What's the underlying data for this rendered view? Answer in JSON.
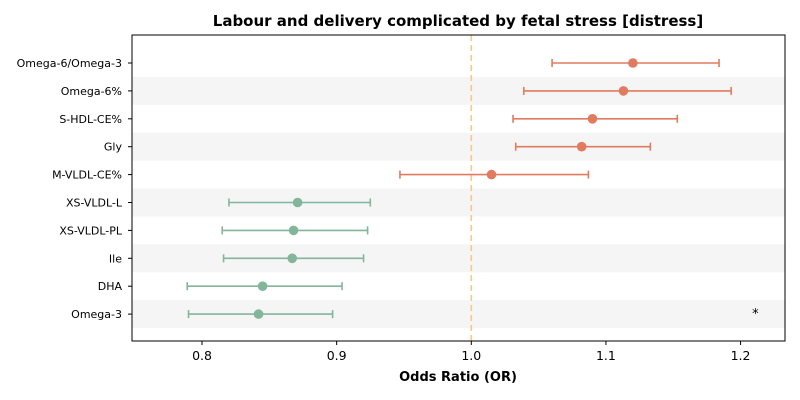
{
  "chart_data": {
    "type": "forest",
    "title": "Labour and delivery complicated by fetal stress [distress]",
    "xlabel": "Odds Ratio (OR)",
    "ylabel": "",
    "xlim": [
      0.748,
      1.233
    ],
    "xticks": [
      "0.8",
      "0.9",
      "1.0",
      "1.1",
      "1.2"
    ],
    "reference_line": 1.0,
    "grid": false,
    "row_banding": true,
    "colors": {
      "positive": "#e07b5f",
      "negative": "#82b59a",
      "reference": "#f5c98a",
      "band": "#f5f5f5"
    },
    "annotation": {
      "text": "*",
      "row": "Omega-3",
      "x": 1.211
    },
    "rows": [
      {
        "label": "Omega-6/Omega-3",
        "or": 1.12,
        "lo": 1.06,
        "hi": 1.184
      },
      {
        "label": "Omega-6%",
        "or": 1.113,
        "lo": 1.039,
        "hi": 1.193
      },
      {
        "label": "S-HDL-CE%",
        "or": 1.09,
        "lo": 1.031,
        "hi": 1.153
      },
      {
        "label": "Gly",
        "or": 1.082,
        "lo": 1.033,
        "hi": 1.133
      },
      {
        "label": "M-VLDL-CE%",
        "or": 1.015,
        "lo": 0.947,
        "hi": 1.087
      },
      {
        "label": "XS-VLDL-L",
        "or": 0.871,
        "lo": 0.82,
        "hi": 0.925
      },
      {
        "label": "XS-VLDL-PL",
        "or": 0.868,
        "lo": 0.815,
        "hi": 0.923
      },
      {
        "label": "Ile",
        "or": 0.867,
        "lo": 0.816,
        "hi": 0.92
      },
      {
        "label": "DHA",
        "or": 0.845,
        "lo": 0.789,
        "hi": 0.904
      },
      {
        "label": "Omega-3",
        "or": 0.842,
        "lo": 0.79,
        "hi": 0.897
      }
    ]
  }
}
